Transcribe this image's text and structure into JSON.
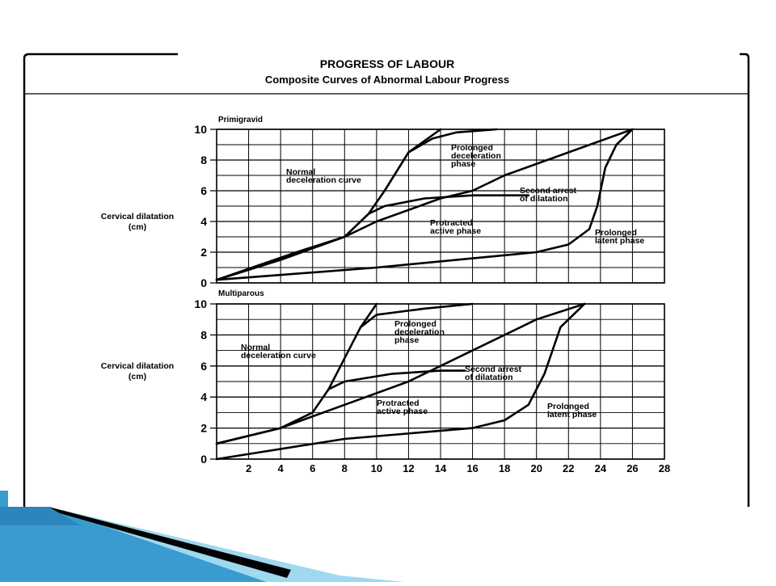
{
  "title": "PROGRESS OF LABOUR",
  "subtitle": "Composite Curves of Abnormal Labour Progress",
  "colors": {
    "ink": "#000000",
    "background": "#ffffff",
    "ribbon_light": "#9fd8ef",
    "ribbon_mid": "#3a9bcf",
    "ribbon_dark": "#0f5f96"
  },
  "chart_data": [
    {
      "type": "line",
      "panel_label": "Primigravid",
      "ylabel_line1": "Cervical dilatation",
      "ylabel_line2": "(cm)",
      "xlabel": "",
      "xlim": [
        0,
        28
      ],
      "ylim": [
        0,
        10
      ],
      "x_ticks": [],
      "y_ticks": [
        "0",
        "2",
        "4",
        "6",
        "8",
        "10"
      ],
      "grid": true,
      "series": [
        {
          "label": "Normal deceleration curve",
          "points": [
            [
              0,
              0.2
            ],
            [
              5,
              2
            ],
            [
              8,
              3
            ],
            [
              9.5,
              4.5
            ],
            [
              10.5,
              6
            ],
            [
              12,
              8.5
            ],
            [
              14,
              10
            ]
          ]
        },
        {
          "label": "Prolonged deceleration phase",
          "points": [
            [
              12,
              8.5
            ],
            [
              13.5,
              9.4
            ],
            [
              15,
              9.8
            ],
            [
              17.5,
              10
            ]
          ]
        },
        {
          "label": "Second arrest of dilatation",
          "points": [
            [
              9.5,
              4.5
            ],
            [
              10.5,
              5
            ],
            [
              13,
              5.5
            ],
            [
              16,
              5.7
            ],
            [
              19.5,
              5.7
            ]
          ]
        },
        {
          "label": "Protracted active phase",
          "points": [
            [
              0,
              0.2
            ],
            [
              4,
              1.5
            ],
            [
              8,
              3
            ],
            [
              10,
              4
            ],
            [
              14,
              5.5
            ],
            [
              16,
              6
            ],
            [
              18,
              7
            ],
            [
              22,
              8.5
            ],
            [
              26,
              10
            ]
          ]
        },
        {
          "label": "Prolonged latent phase",
          "points": [
            [
              0,
              0.2
            ],
            [
              10,
              1
            ],
            [
              20,
              2
            ],
            [
              22,
              2.5
            ],
            [
              23.3,
              3.5
            ],
            [
              23.8,
              5
            ],
            [
              24,
              6
            ],
            [
              24.3,
              7.5
            ],
            [
              25,
              9
            ],
            [
              26,
              10
            ]
          ]
        }
      ],
      "annotations": [
        {
          "line1": "Normal",
          "line2": "deceleration curve"
        },
        {
          "line1": "Prolonged",
          "line2": "deceleration",
          "line3": "phase"
        },
        {
          "line1": "Second arrest",
          "line2": "of dilatation"
        },
        {
          "line1": "Protracted",
          "line2": "active phase"
        },
        {
          "line1": "Prolonged",
          "line2": "latent phase"
        }
      ]
    },
    {
      "type": "line",
      "panel_label": "Multiparous",
      "ylabel_line1": "Cervical dilatation",
      "ylabel_line2": "(cm)",
      "xlabel": "",
      "xlim": [
        0,
        28
      ],
      "ylim": [
        0,
        10
      ],
      "x_ticks": [
        "2",
        "4",
        "6",
        "8",
        "10",
        "12",
        "14",
        "16",
        "18",
        "20",
        "22",
        "24",
        "26",
        "28"
      ],
      "y_ticks": [
        "0",
        "2",
        "4",
        "6",
        "8",
        "10"
      ],
      "grid": true,
      "series": [
        {
          "label": "Normal deceleration curve",
          "points": [
            [
              0,
              1
            ],
            [
              4,
              2
            ],
            [
              6,
              3
            ],
            [
              7,
              4.5
            ],
            [
              8,
              6.5
            ],
            [
              9,
              8.5
            ],
            [
              10,
              10
            ]
          ]
        },
        {
          "label": "Prolonged deceleration phase",
          "points": [
            [
              9,
              8.5
            ],
            [
              10,
              9.3
            ],
            [
              13,
              9.7
            ],
            [
              16,
              10
            ]
          ]
        },
        {
          "label": "Second arrest of dilatation",
          "points": [
            [
              7,
              4.5
            ],
            [
              8,
              5
            ],
            [
              11,
              5.5
            ],
            [
              14,
              5.7
            ],
            [
              15.5,
              5.7
            ]
          ]
        },
        {
          "label": "Protracted active phase",
          "points": [
            [
              0,
              1
            ],
            [
              4,
              2
            ],
            [
              8,
              3.5
            ],
            [
              12,
              5
            ],
            [
              16,
              7
            ],
            [
              20,
              9
            ],
            [
              23,
              10
            ]
          ]
        },
        {
          "label": "Prolonged latent phase",
          "points": [
            [
              0,
              0
            ],
            [
              8,
              1.3
            ],
            [
              16,
              2
            ],
            [
              18,
              2.5
            ],
            [
              19.5,
              3.5
            ],
            [
              20.5,
              5.5
            ],
            [
              21,
              7
            ],
            [
              21.5,
              8.5
            ],
            [
              22.5,
              9.5
            ],
            [
              23,
              10
            ]
          ]
        }
      ],
      "annotations": [
        {
          "line1": "Normal",
          "line2": "deceleration curve"
        },
        {
          "line1": "Prolonged",
          "line2": "deceleration",
          "line3": "phase"
        },
        {
          "line1": "Second arrest",
          "line2": "of dilatation"
        },
        {
          "line1": "Protracted",
          "line2": "active phase"
        },
        {
          "line1": "Prolonged",
          "line2": "latent phase"
        }
      ]
    }
  ]
}
